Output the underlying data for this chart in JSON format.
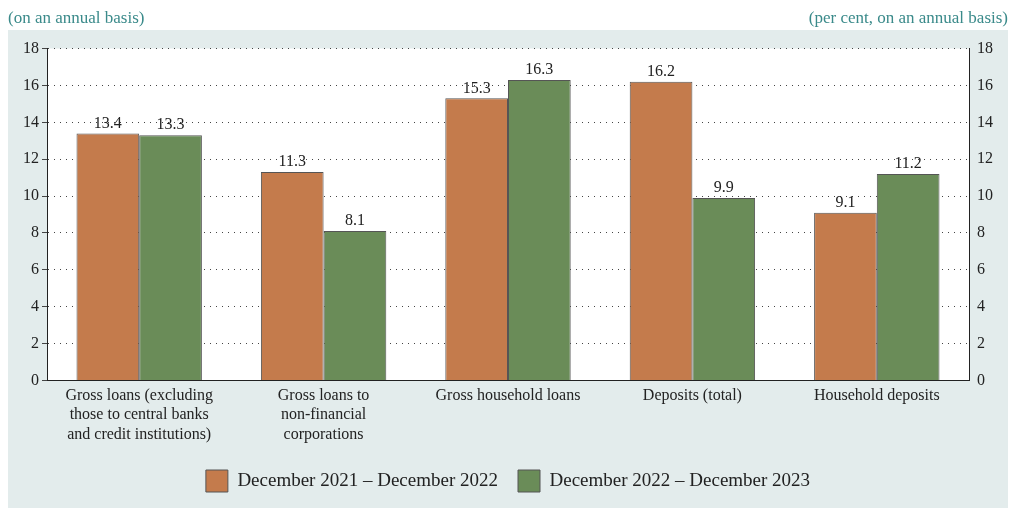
{
  "chart_data": {
    "type": "bar",
    "categories": [
      "Gross loans (excluding those to central banks and credit institutions)",
      "Gross loans to non-financial corporations",
      "Gross household loans",
      "Deposits (total)",
      "Household deposits"
    ],
    "series": [
      {
        "name": "December 2021 – December 2022",
        "color": "#c47b4c",
        "values": [
          13.4,
          11.3,
          15.3,
          16.2,
          9.1
        ]
      },
      {
        "name": "December 2022 – December 2023",
        "color": "#6a8c58",
        "values": [
          13.3,
          8.1,
          16.3,
          9.9,
          11.2
        ]
      }
    ],
    "ylim": [
      0,
      18
    ],
    "yticks": [
      0,
      2,
      4,
      6,
      8,
      10,
      12,
      14,
      16,
      18
    ],
    "y2lim": [
      0,
      18
    ],
    "y2ticks": [
      0,
      2,
      4,
      6,
      8,
      10,
      12,
      14,
      16,
      18
    ],
    "grid": "y",
    "legend": "bottom",
    "data_labels": true,
    "annotations": [
      "(on an annual basis)",
      "(per cent, on an annual basis)"
    ]
  }
}
